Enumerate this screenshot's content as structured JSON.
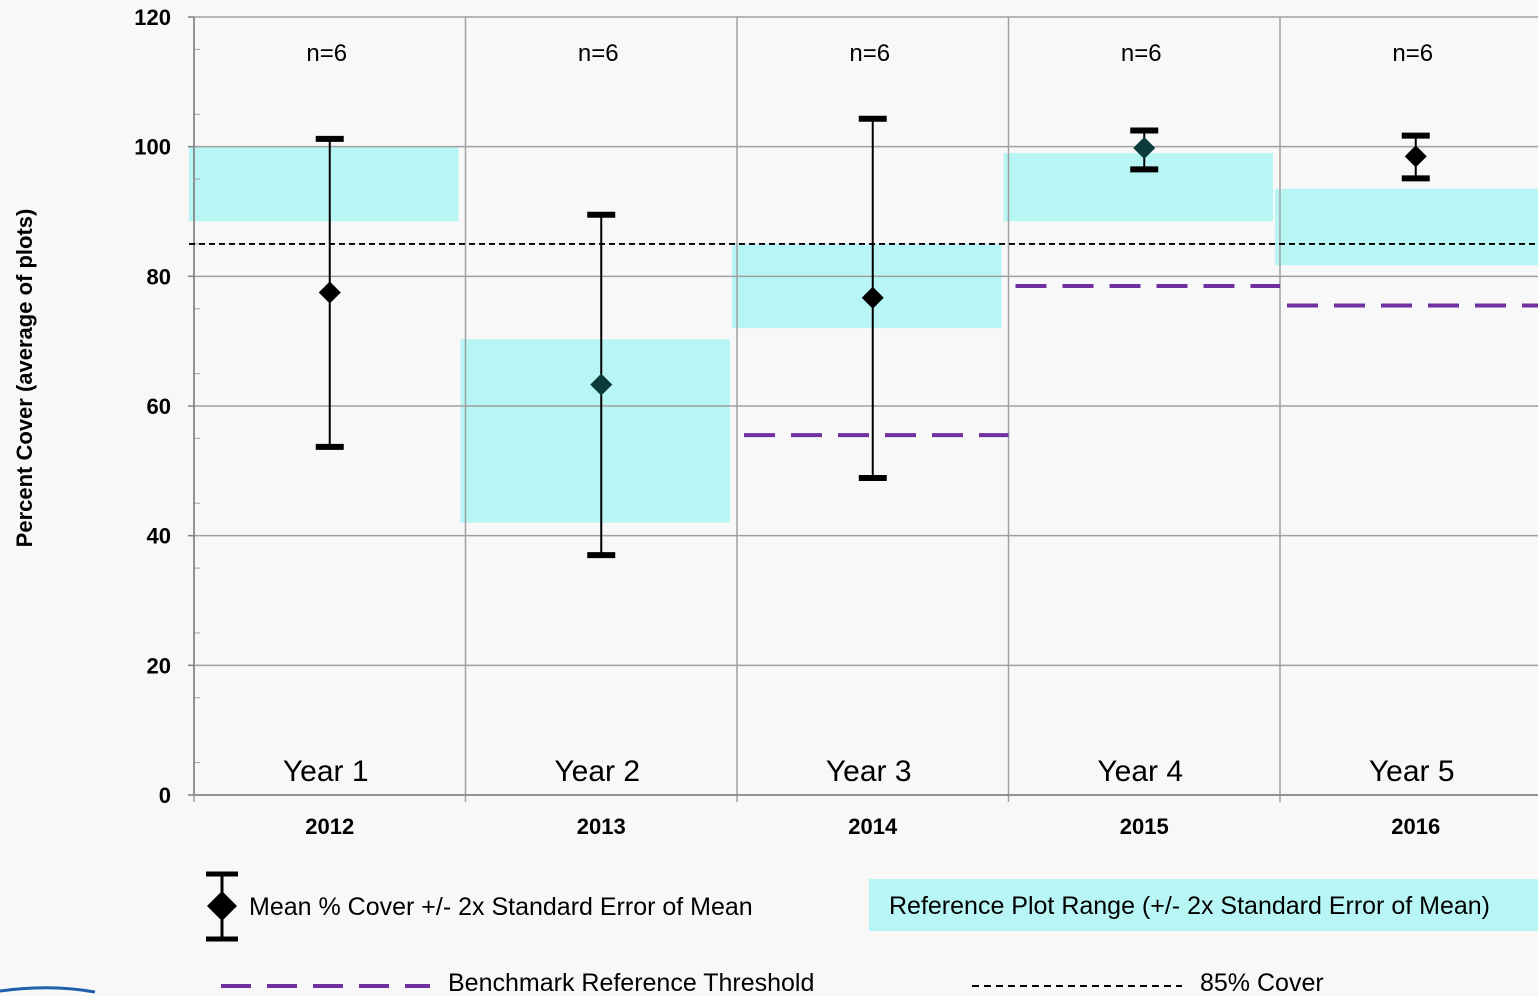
{
  "chart_data": {
    "type": "scatter",
    "ylabel": "Percent Cover (average of plots)",
    "ylim": [
      0,
      120
    ],
    "yticks": [
      0,
      20,
      40,
      60,
      80,
      100,
      120
    ],
    "grid": true,
    "categories": [
      "2012",
      "2013",
      "2014",
      "2015",
      "2016"
    ],
    "period_labels": [
      "Year 1",
      "Year 2",
      "Year 3",
      "Year 4",
      "Year 5"
    ],
    "sample_sizes": [
      "n=6",
      "n=6",
      "n=6",
      "n=6",
      "n=6"
    ],
    "mean_cover": {
      "name": "Mean % Cover +/- 2x Standard Error of Mean",
      "values": [
        77.5,
        63.3,
        76.7,
        99.8,
        98.5
      ],
      "error_low": [
        53.7,
        37.0,
        48.9,
        96.5,
        95.1
      ],
      "error_high": [
        101.2,
        89.5,
        104.3,
        102.5,
        101.7
      ],
      "color": "#000000"
    },
    "reference_range": {
      "name": "Reference Plot Range (+/- 2x Standard Error of Mean)",
      "low": [
        88.5,
        42.0,
        72.0,
        88.5,
        81.7
      ],
      "high": [
        100.0,
        70.3,
        85.0,
        99.0,
        93.5
      ],
      "color": "#b8f6f6"
    },
    "benchmark_threshold": {
      "name": "Benchmark Reference Threshold",
      "values": [
        null,
        null,
        55.5,
        78.5,
        75.5
      ],
      "color": "#7030a0"
    },
    "cover_85": {
      "name": "85% Cover",
      "value": 85,
      "color": "#000000"
    },
    "legend_position": "bottom"
  }
}
